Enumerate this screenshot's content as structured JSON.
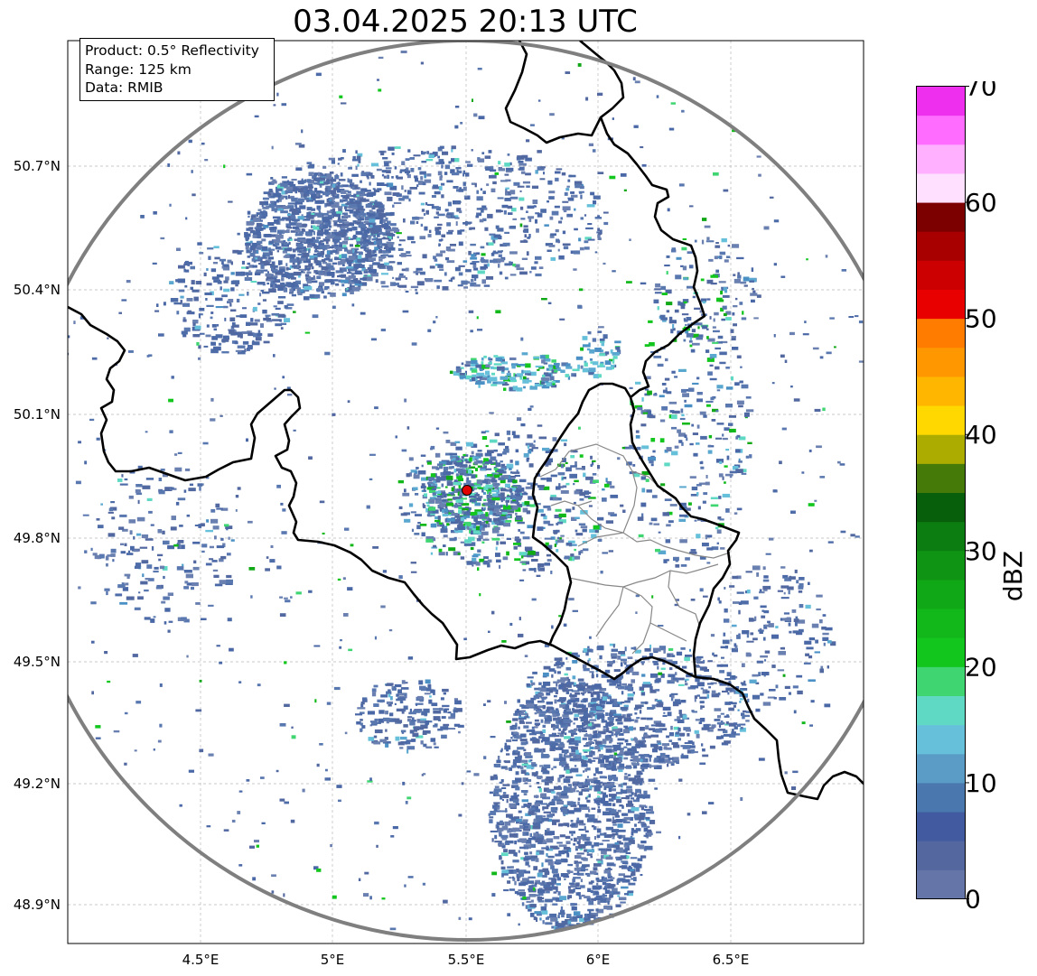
{
  "title": "03.04.2025 20:13 UTC",
  "info": {
    "product": "Product: 0.5° Reflectivity",
    "range": "Range: 125 km",
    "data": "Data: RMIB"
  },
  "lat_ticks": [
    "50.7°N",
    "50.4°N",
    "50.1°N",
    "49.8°N",
    "49.5°N",
    "49.2°N",
    "48.9°N"
  ],
  "lon_ticks": [
    "4.5°E",
    "5°E",
    "5.5°E",
    "6°E",
    "6.5°E"
  ],
  "map_extent": {
    "lon_min": 4.0,
    "lon_max": 7.0,
    "lat_min": 48.8,
    "lat_max": 51.0
  },
  "radar_site": {
    "lon": 5.505,
    "lat": 49.914,
    "color": "#e00000"
  },
  "colorbar": {
    "label": "dBZ",
    "ticks": [
      "0",
      "10",
      "20",
      "30",
      "40",
      "50",
      "60",
      "70"
    ],
    "min": 0,
    "max": 70,
    "step": 2.5,
    "colors": [
      "#6675a8",
      "#54689f",
      "#425ba0",
      "#4a78ae",
      "#5a9cc6",
      "#66c0da",
      "#5fd8c4",
      "#3fd672",
      "#12c61e",
      "#12b81a",
      "#11a817",
      "#0f9414",
      "#0c7d10",
      "#085f0b",
      "#457a08",
      "#acac00",
      "#ffd800",
      "#ffb600",
      "#ff9800",
      "#ff7c00",
      "#e80000",
      "#cc0000",
      "#a80000",
      "#7c0000",
      "#ffe0ff",
      "#ffb0ff",
      "#ff6cff",
      "#ee30ee"
    ]
  }
}
